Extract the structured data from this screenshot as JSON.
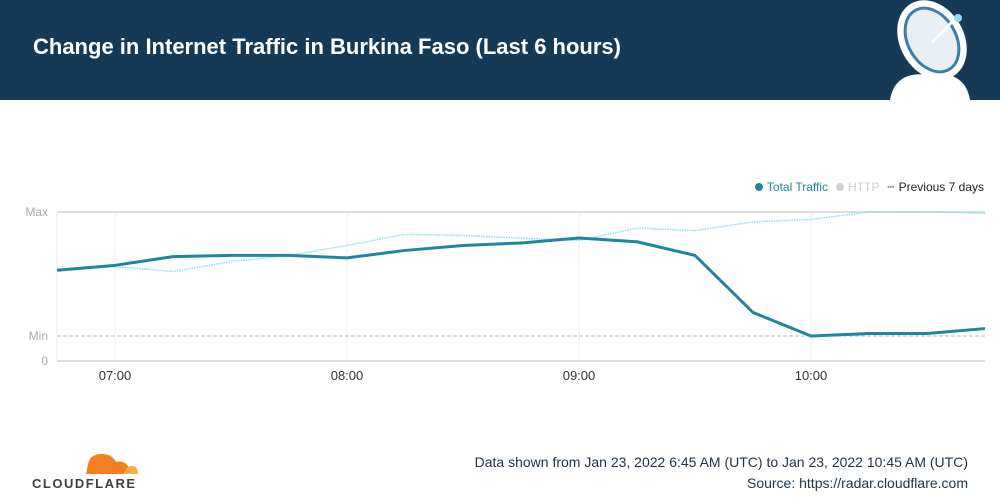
{
  "header": {
    "title": "Change in Internet Traffic in Burkina Faso (Last 6 hours)"
  },
  "legend": [
    {
      "label": "Total Traffic",
      "color": "#1e87a0"
    },
    {
      "label": "HTTP",
      "color": "#d0d0d0"
    },
    {
      "label": "Previous 7 days",
      "color": "#222222"
    }
  ],
  "chart_data": {
    "type": "line",
    "title": "Change in Internet Traffic in Burkina Faso (Last 6 hours)",
    "x": [
      "06:45",
      "07:00",
      "07:15",
      "07:30",
      "07:45",
      "08:00",
      "08:15",
      "08:30",
      "08:45",
      "09:00",
      "09:15",
      "09:30",
      "09:45",
      "10:00",
      "10:15",
      "10:30",
      "10:45"
    ],
    "x_ticks": [
      "07:00",
      "08:00",
      "09:00",
      "10:00"
    ],
    "y_ticks": [
      "Max",
      "Min",
      "0"
    ],
    "ylim_normalized": [
      0,
      1
    ],
    "series": [
      {
        "name": "Total Traffic",
        "color": "#1e87a0",
        "values": [
          0.53,
          0.57,
          0.64,
          0.65,
          0.65,
          0.63,
          0.69,
          0.73,
          0.75,
          0.79,
          0.76,
          0.65,
          0.19,
          0.0,
          0.02,
          0.02,
          0.06
        ]
      },
      {
        "name": "Previous 7 days",
        "color": "#8fdcf0",
        "values": [
          0.53,
          0.56,
          0.52,
          0.6,
          0.65,
          0.73,
          0.82,
          0.81,
          0.79,
          0.77,
          0.87,
          0.85,
          0.92,
          0.94,
          1.0,
          1.0,
          0.99
        ]
      }
    ]
  },
  "footer": {
    "logo": "CLOUDFLARE",
    "range": "Data shown from Jan 23, 2022 6:45 AM (UTC) to Jan 23, 2022 10:45 AM (UTC)",
    "source_label": "Source:",
    "source_link": "https://radar.cloudflare.com"
  }
}
